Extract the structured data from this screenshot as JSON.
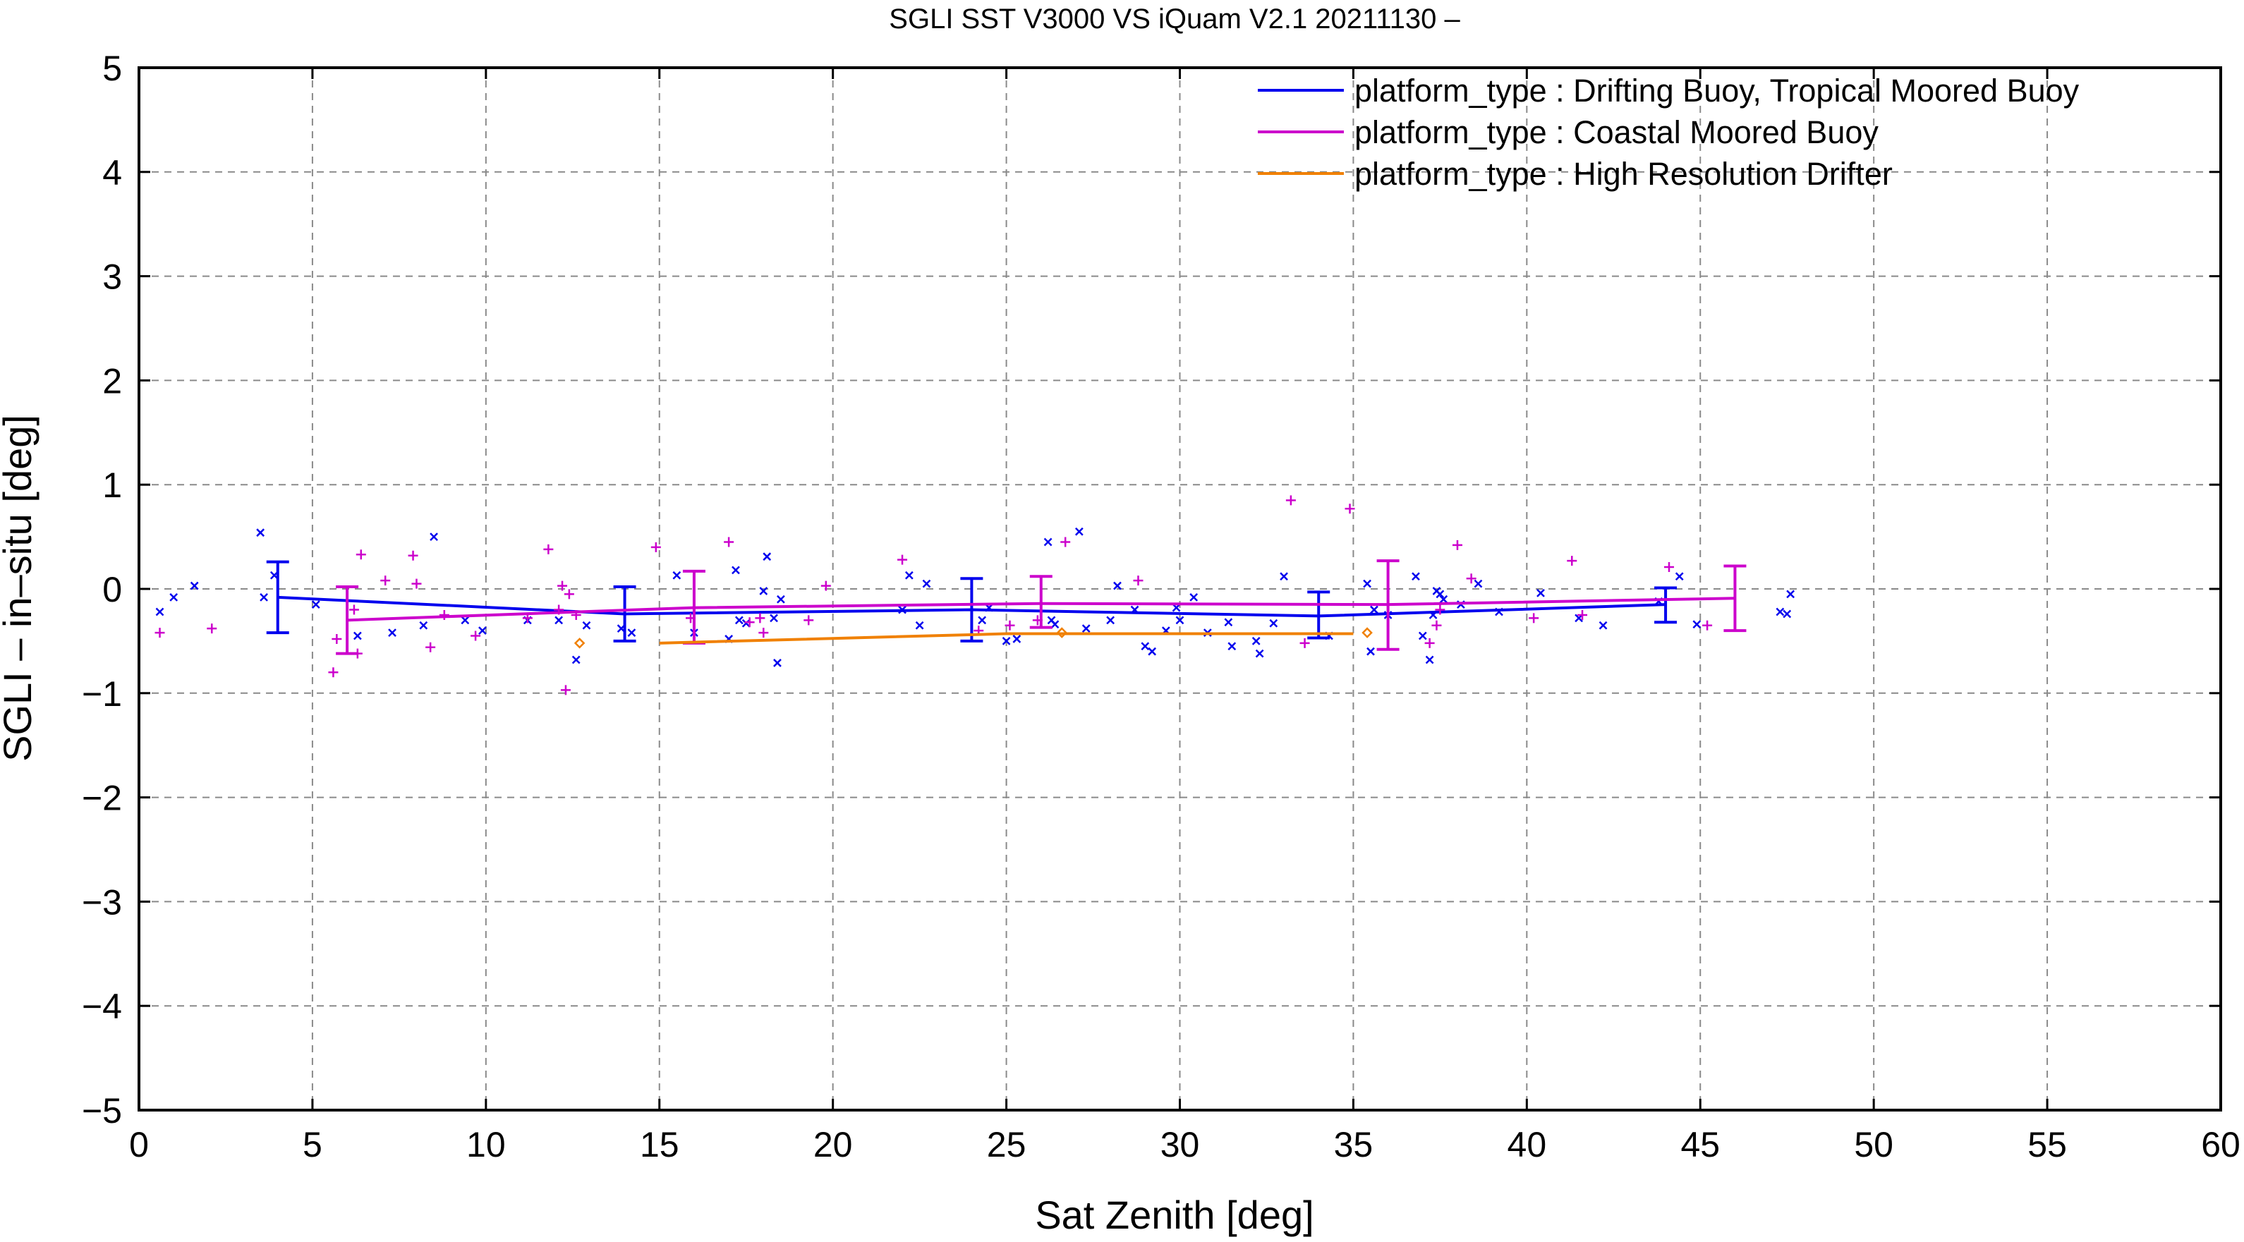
{
  "chart_data": {
    "type": "scatter",
    "title": "SGLI SST V3000 VS iQuam V2.1 20211130 –",
    "xlabel": "Sat Zenith [deg]",
    "ylabel": "SGLI – in–situ [deg]",
    "xlim": [
      0,
      60
    ],
    "ylim": [
      -5,
      5
    ],
    "x_ticks": [
      0,
      5,
      10,
      15,
      20,
      25,
      30,
      35,
      40,
      45,
      50,
      55,
      60
    ],
    "y_ticks": [
      5,
      4,
      3,
      2,
      1,
      0,
      -1,
      -2,
      -3,
      -4,
      -5
    ],
    "y_tick_labels": [
      "5",
      "4",
      "3",
      "2",
      "1",
      "0",
      "−1",
      "−2",
      "−3",
      "−4",
      "−5"
    ],
    "grid": true,
    "legend_position": "top-right",
    "series": [
      {
        "name": "platform_type : Drifting Buoy, Tropical Moored Buoy",
        "color": "#0000ee",
        "marker": "x",
        "points": [
          [
            0.6,
            -0.22
          ],
          [
            1.0,
            -0.08
          ],
          [
            1.6,
            0.03
          ],
          [
            3.5,
            0.54
          ],
          [
            3.6,
            -0.08
          ],
          [
            3.9,
            0.13
          ],
          [
            5.1,
            -0.15
          ],
          [
            6.3,
            -0.45
          ],
          [
            7.3,
            -0.42
          ],
          [
            8.2,
            -0.35
          ],
          [
            8.5,
            0.5
          ],
          [
            9.4,
            -0.3
          ],
          [
            9.9,
            -0.4
          ],
          [
            11.2,
            -0.3
          ],
          [
            12.1,
            -0.3
          ],
          [
            12.6,
            -0.68
          ],
          [
            12.9,
            -0.35
          ],
          [
            13.9,
            -0.38
          ],
          [
            14.2,
            -0.42
          ],
          [
            15.5,
            0.13
          ],
          [
            16.0,
            -0.42
          ],
          [
            17.0,
            -0.48
          ],
          [
            17.2,
            0.18
          ],
          [
            17.3,
            -0.3
          ],
          [
            17.5,
            -0.33
          ],
          [
            18.0,
            -0.02
          ],
          [
            18.1,
            0.31
          ],
          [
            18.3,
            -0.28
          ],
          [
            18.4,
            -0.71
          ],
          [
            18.5,
            -0.1
          ],
          [
            22.0,
            -0.2
          ],
          [
            22.2,
            0.13
          ],
          [
            22.5,
            -0.35
          ],
          [
            22.7,
            0.05
          ],
          [
            24.3,
            -0.3
          ],
          [
            24.5,
            -0.18
          ],
          [
            25.0,
            -0.5
          ],
          [
            25.3,
            -0.48
          ],
          [
            26.2,
            0.45
          ],
          [
            26.3,
            -0.3
          ],
          [
            26.4,
            -0.34
          ],
          [
            27.1,
            0.55
          ],
          [
            27.3,
            -0.38
          ],
          [
            28.0,
            -0.3
          ],
          [
            28.2,
            0.03
          ],
          [
            28.7,
            -0.2
          ],
          [
            29.0,
            -0.55
          ],
          [
            29.2,
            -0.6
          ],
          [
            29.6,
            -0.4
          ],
          [
            29.9,
            -0.18
          ],
          [
            30.0,
            -0.3
          ],
          [
            30.4,
            -0.08
          ],
          [
            30.8,
            -0.42
          ],
          [
            31.4,
            -0.32
          ],
          [
            31.5,
            -0.55
          ],
          [
            32.2,
            -0.5
          ],
          [
            32.3,
            -0.62
          ],
          [
            32.7,
            -0.33
          ],
          [
            33.0,
            0.12
          ],
          [
            34.3,
            -0.45
          ],
          [
            35.4,
            0.05
          ],
          [
            35.5,
            -0.6
          ],
          [
            35.6,
            -0.2
          ],
          [
            36.0,
            -0.25
          ],
          [
            36.8,
            0.12
          ],
          [
            37.0,
            -0.45
          ],
          [
            37.2,
            -0.68
          ],
          [
            37.3,
            -0.25
          ],
          [
            37.4,
            -0.02
          ],
          [
            37.5,
            -0.05
          ],
          [
            37.6,
            -0.1
          ],
          [
            38.1,
            -0.15
          ],
          [
            38.6,
            0.05
          ],
          [
            39.2,
            -0.22
          ],
          [
            40.4,
            -0.04
          ],
          [
            41.5,
            -0.28
          ],
          [
            42.2,
            -0.35
          ],
          [
            43.8,
            -0.12
          ],
          [
            44.4,
            0.12
          ],
          [
            44.9,
            -0.34
          ],
          [
            47.3,
            -0.22
          ],
          [
            47.5,
            -0.24
          ],
          [
            47.6,
            -0.05
          ]
        ],
        "mean_line": [
          [
            4,
            -0.08
          ],
          [
            14,
            -0.24
          ],
          [
            24,
            -0.2
          ],
          [
            34,
            -0.26
          ],
          [
            44,
            -0.15
          ]
        ],
        "error_bars": [
          [
            4,
            -0.42,
            0.26
          ],
          [
            14,
            -0.5,
            0.02
          ],
          [
            24,
            -0.5,
            0.1
          ],
          [
            34,
            -0.47,
            -0.03
          ],
          [
            44,
            -0.32,
            0.01
          ]
        ]
      },
      {
        "name": "platform_type : Coastal Moored Buoy",
        "color": "#cc00cc",
        "marker": "+",
        "points": [
          [
            0.6,
            -0.42
          ],
          [
            2.1,
            -0.38
          ],
          [
            5.6,
            -0.8
          ],
          [
            5.7,
            -0.48
          ],
          [
            6.3,
            -0.62
          ],
          [
            6.4,
            0.33
          ],
          [
            6.2,
            -0.2
          ],
          [
            7.1,
            0.08
          ],
          [
            7.9,
            0.32
          ],
          [
            8.0,
            0.05
          ],
          [
            8.4,
            -0.56
          ],
          [
            8.8,
            -0.25
          ],
          [
            9.7,
            -0.45
          ],
          [
            11.2,
            -0.28
          ],
          [
            11.8,
            0.38
          ],
          [
            12.1,
            -0.2
          ],
          [
            12.2,
            0.03
          ],
          [
            12.3,
            -0.97
          ],
          [
            12.4,
            -0.05
          ],
          [
            12.6,
            -0.25
          ],
          [
            14.9,
            0.4
          ],
          [
            15.9,
            -0.28
          ],
          [
            17.0,
            0.45
          ],
          [
            17.6,
            -0.32
          ],
          [
            17.9,
            -0.28
          ],
          [
            18.0,
            -0.42
          ],
          [
            19.3,
            -0.3
          ],
          [
            19.8,
            0.03
          ],
          [
            22.0,
            0.28
          ],
          [
            24.2,
            -0.4
          ],
          [
            25.1,
            -0.35
          ],
          [
            25.9,
            -0.3
          ],
          [
            26.7,
            0.45
          ],
          [
            28.8,
            0.08
          ],
          [
            33.2,
            0.85
          ],
          [
            33.6,
            -0.52
          ],
          [
            34.9,
            0.77
          ],
          [
            37.2,
            -0.52
          ],
          [
            37.4,
            -0.35
          ],
          [
            37.5,
            -0.2
          ],
          [
            38.0,
            0.42
          ],
          [
            38.4,
            0.1
          ],
          [
            40.2,
            -0.28
          ],
          [
            41.3,
            0.27
          ],
          [
            41.6,
            -0.25
          ],
          [
            44.1,
            0.21
          ],
          [
            45.2,
            -0.35
          ]
        ],
        "mean_line": [
          [
            6,
            -0.3
          ],
          [
            16,
            -0.18
          ],
          [
            26,
            -0.14
          ],
          [
            36,
            -0.15
          ],
          [
            46,
            -0.09
          ]
        ],
        "error_bars": [
          [
            6,
            -0.62,
            0.02
          ],
          [
            16,
            -0.52,
            0.17
          ],
          [
            26,
            -0.37,
            0.12
          ],
          [
            36,
            -0.58,
            0.27
          ],
          [
            46,
            -0.4,
            0.22
          ]
        ]
      },
      {
        "name": "platform_type : High Resolution Drifter",
        "color": "#f08000",
        "marker": "diamond",
        "points": [
          [
            12.7,
            -0.52
          ],
          [
            26.6,
            -0.42
          ],
          [
            35.4,
            -0.42
          ]
        ],
        "mean_line": [
          [
            15,
            -0.52
          ],
          [
            25,
            -0.43
          ],
          [
            35,
            -0.43
          ]
        ],
        "error_bars": []
      }
    ]
  }
}
